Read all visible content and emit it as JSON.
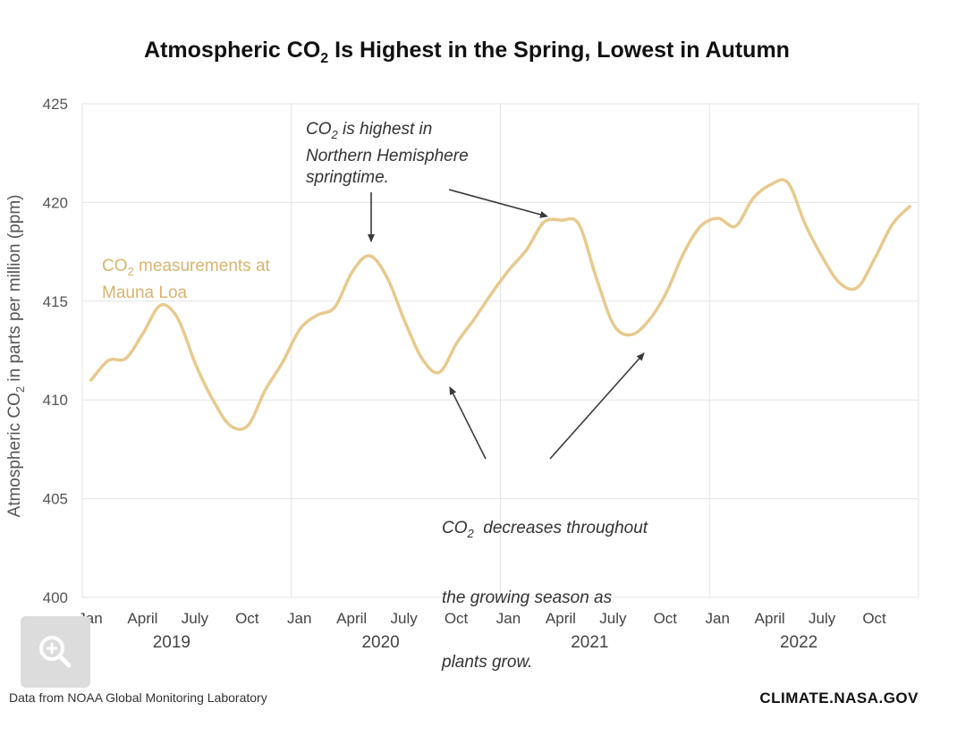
{
  "title": {
    "prefix": "Atmospheric CO",
    "sub": "2",
    "suffix": " Is Highest in the Spring, Lowest in Autumn"
  },
  "ylabel": {
    "prefix": "Atmospheric CO",
    "sub": "2",
    "suffix": " in parts per million (ppm)"
  },
  "series_label": {
    "prefix": "CO",
    "sub": "2",
    "suffix": " measurements at",
    "line2": "Mauna Loa"
  },
  "annotations": {
    "high": {
      "prefix": "CO",
      "sub": "2",
      "suffix": " is highest in",
      "line2": "Northern Hemisphere",
      "line3": "springtime."
    },
    "low": {
      "prefix": "CO",
      "sub": "2",
      "suffix": "  decreases throughout",
      "line2": "the growing season as",
      "line3": "plants grow."
    }
  },
  "source": "Data from NOAA Global Monitoring Laboratory",
  "brand": "CLIMATE.NASA.GOV",
  "zoom_icon": "zoom-in-icon",
  "colors": {
    "line": "#e8c98e",
    "grid": "#e3e3e3",
    "arrow": "#3a3a3a",
    "series_label": "#d9b46e"
  },
  "chart_data": {
    "type": "line",
    "ylim": [
      400,
      425
    ],
    "yticks": [
      400,
      405,
      410,
      415,
      420,
      425
    ],
    "xlim": [
      2019.0,
      2023.0
    ],
    "x_tick_labels": [
      {
        "x": 2019.0,
        "label": "Jan"
      },
      {
        "x": 2019.25,
        "label": "April"
      },
      {
        "x": 2019.5,
        "label": "July"
      },
      {
        "x": 2019.75,
        "label": "Oct"
      },
      {
        "x": 2020.0,
        "label": "Jan"
      },
      {
        "x": 2020.25,
        "label": "April"
      },
      {
        "x": 2020.5,
        "label": "July"
      },
      {
        "x": 2020.75,
        "label": "Oct"
      },
      {
        "x": 2021.0,
        "label": "Jan"
      },
      {
        "x": 2021.25,
        "label": "April"
      },
      {
        "x": 2021.5,
        "label": "July"
      },
      {
        "x": 2021.75,
        "label": "Oct"
      },
      {
        "x": 2022.0,
        "label": "Jan"
      },
      {
        "x": 2022.25,
        "label": "April"
      },
      {
        "x": 2022.5,
        "label": "July"
      },
      {
        "x": 2022.75,
        "label": "Oct"
      }
    ],
    "year_labels": [
      {
        "x": 2019.5,
        "label": "2019"
      },
      {
        "x": 2020.5,
        "label": "2020"
      },
      {
        "x": 2021.5,
        "label": "2021"
      },
      {
        "x": 2022.5,
        "label": "2022"
      }
    ],
    "vertical_gridlines_x": [
      2020.0,
      2021.0,
      2022.0
    ],
    "grid": true,
    "series": [
      {
        "name": "CO2 measurements at Mauna Loa",
        "x": [
          2019.042,
          2019.125,
          2019.208,
          2019.292,
          2019.375,
          2019.458,
          2019.542,
          2019.625,
          2019.708,
          2019.792,
          2019.875,
          2019.958,
          2020.042,
          2020.125,
          2020.208,
          2020.292,
          2020.375,
          2020.458,
          2020.542,
          2020.625,
          2020.708,
          2020.792,
          2020.875,
          2020.958,
          2021.042,
          2021.125,
          2021.208,
          2021.292,
          2021.375,
          2021.458,
          2021.542,
          2021.625,
          2021.708,
          2021.792,
          2021.875,
          2021.958,
          2022.042,
          2022.125,
          2022.208,
          2022.292,
          2022.375,
          2022.458,
          2022.542,
          2022.625,
          2022.708,
          2022.792,
          2022.875,
          2022.958
        ],
        "y": [
          411.0,
          412.0,
          412.1,
          413.4,
          414.8,
          414.1,
          411.8,
          410.0,
          408.7,
          408.7,
          410.5,
          411.9,
          413.6,
          414.3,
          414.7,
          416.5,
          417.3,
          416.2,
          414.0,
          412.1,
          411.4,
          412.9,
          414.1,
          415.4,
          416.6,
          417.6,
          419.0,
          419.1,
          418.9,
          416.2,
          413.8,
          413.3,
          414.0,
          415.4,
          417.4,
          418.8,
          419.2,
          418.8,
          420.2,
          420.9,
          421.0,
          418.9,
          417.2,
          415.9,
          415.7,
          417.2,
          418.9,
          419.8
        ]
      }
    ]
  }
}
